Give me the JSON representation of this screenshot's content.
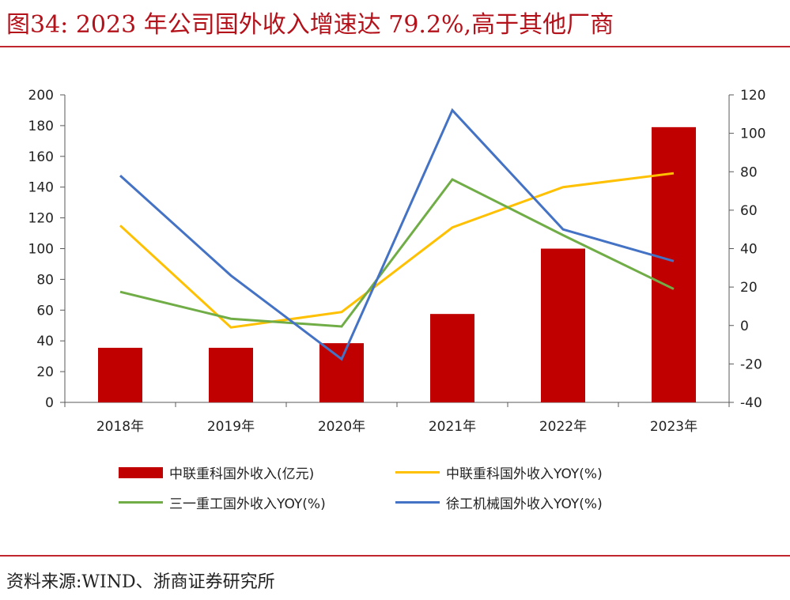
{
  "title": "图34:  2023 年公司国外收入增速达 79.2%,高于其他厂商",
  "source": "资料来源:WIND、浙商证券研究所",
  "colors": {
    "title": "#b4121b",
    "bar": "#c00000",
    "yellow": "#ffc000",
    "green": "#70ad47",
    "blue": "#4472c4",
    "rule": "#c0262d"
  },
  "chart_data": {
    "type": "bar",
    "categories": [
      "2018年",
      "2019年",
      "2020年",
      "2021年",
      "2022年",
      "2023年"
    ],
    "left_axis": {
      "ylim": [
        0,
        200
      ],
      "ticks": [
        0,
        20,
        40,
        60,
        80,
        100,
        120,
        140,
        160,
        180,
        200
      ]
    },
    "right_axis": {
      "ylim": [
        -40,
        120
      ],
      "ticks": [
        -40,
        -20,
        0,
        20,
        40,
        60,
        80,
        100,
        120
      ]
    },
    "grid": false,
    "legend_position": "bottom",
    "series": [
      {
        "name": "中联重科国外收入(亿元)",
        "type": "bar",
        "axis": "left",
        "color": "#c00000",
        "values": [
          35.5,
          35.5,
          38.5,
          57.5,
          100,
          179
        ]
      },
      {
        "name": "中联重科国外收入YOY(%)",
        "type": "line",
        "axis": "right",
        "color": "#ffc000",
        "values": [
          52,
          -1,
          7,
          51,
          72,
          79.2
        ]
      },
      {
        "name": "三一重工国外收入YOY(%)",
        "type": "line",
        "axis": "right",
        "color": "#70ad47",
        "values": [
          17.5,
          3.5,
          -0.5,
          76,
          47,
          19
        ]
      },
      {
        "name": "徐工机械国外收入YOY(%)",
        "type": "line",
        "axis": "right",
        "color": "#4472c4",
        "values": [
          78,
          26,
          -17.5,
          112,
          50,
          33.5
        ]
      }
    ]
  }
}
